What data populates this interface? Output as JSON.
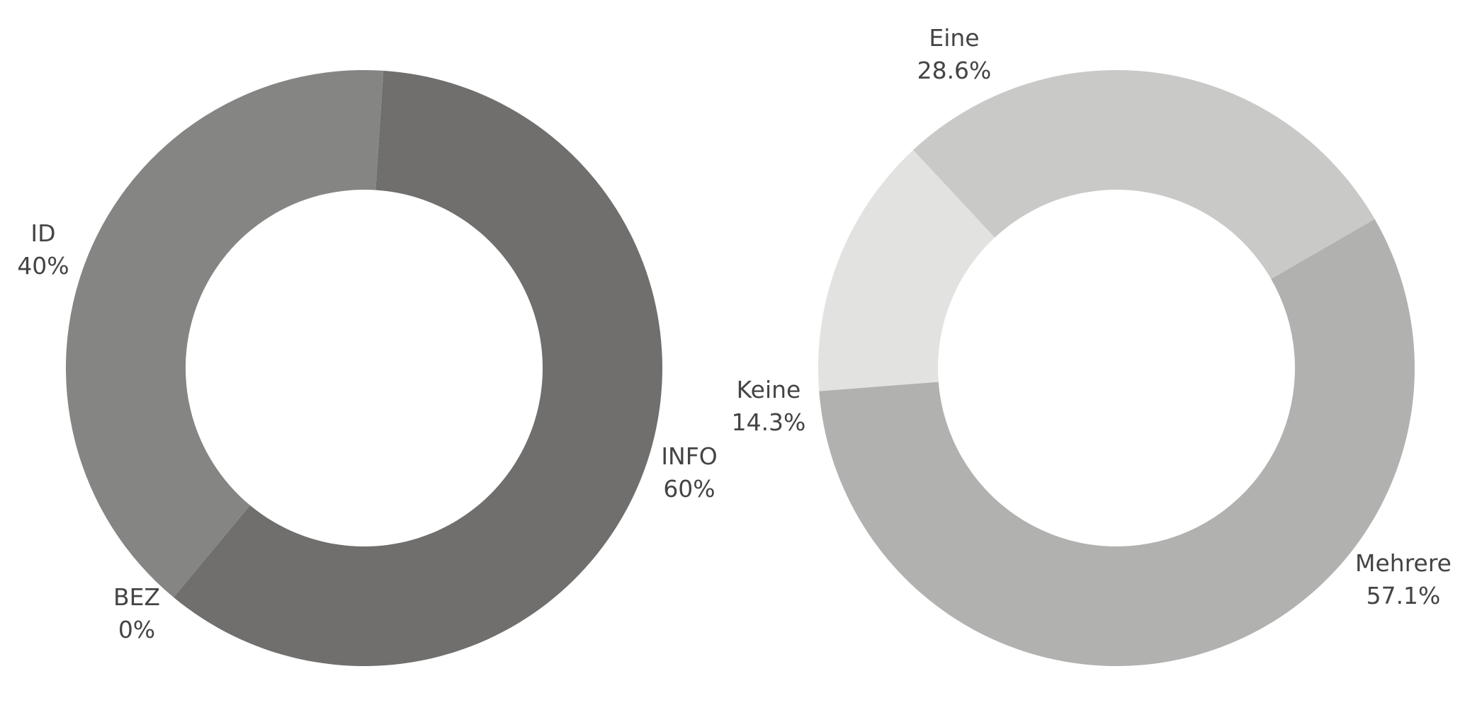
{
  "chart_data": [
    {
      "type": "pie",
      "donut": true,
      "direction": "clockwise",
      "series": [
        {
          "label": "INFO",
          "value": 60,
          "percent_text": "60%",
          "color": "#706f6d"
        },
        {
          "label": "BEZ",
          "value": 0,
          "percent_text": "0%",
          "color": "#888886"
        },
        {
          "label": "ID",
          "value": 40,
          "percent_text": "40%",
          "color": "#858583"
        }
      ]
    },
    {
      "type": "pie",
      "donut": true,
      "direction": "clockwise",
      "series": [
        {
          "label": "Mehrere",
          "value": 57.1,
          "percent_text": "57.1%",
          "color": "#b1b1b0"
        },
        {
          "label": "Keine",
          "value": 14.3,
          "percent_text": "14.3%",
          "color": "#e2e2e1"
        },
        {
          "label": "Eine",
          "value": 28.6,
          "percent_text": "28.6%",
          "color": "#c9c9c8"
        }
      ]
    }
  ]
}
